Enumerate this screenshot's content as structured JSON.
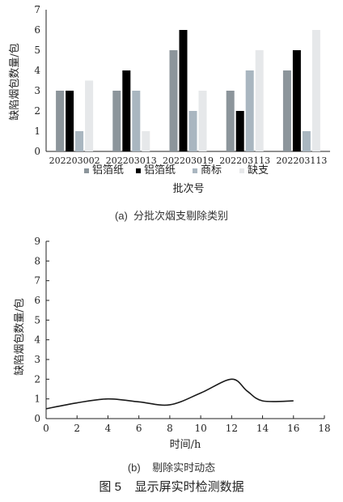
{
  "chart_data": [
    {
      "type": "bar",
      "caption": "(a)  分批次烟支剔除类别",
      "categories": [
        "202203002",
        "202203013",
        "202203019",
        "202203113",
        "202203113"
      ],
      "series": [
        {
          "name": "铝箔纸",
          "color": "#8c959b",
          "values": [
            3,
            3,
            5,
            3,
            4
          ]
        },
        {
          "name": "铝箔纸",
          "color": "#000000",
          "values": [
            3,
            4,
            6,
            2,
            5
          ]
        },
        {
          "name": "商标",
          "color": "#a9b6c0",
          "values": [
            1,
            3,
            2,
            4,
            1
          ]
        },
        {
          "name": "缺支",
          "color": "#e6e8ea",
          "values": [
            3.5,
            1,
            3,
            5,
            6
          ]
        }
      ],
      "ylabel": "缺陷烟包数量/包",
      "xlabel": "批次号",
      "ylim": [
        0,
        7
      ],
      "yticks": [
        "0",
        "1",
        "2",
        "3",
        "4",
        "5",
        "6",
        "7"
      ],
      "legend_position": "bottom",
      "grid": false
    },
    {
      "type": "line",
      "caption": "(b)    剔除实时动态",
      "x": [
        0,
        2,
        4,
        6,
        8,
        10,
        12,
        13,
        14,
        16
      ],
      "y": [
        0.5,
        0.8,
        1.0,
        0.85,
        0.7,
        1.3,
        2.0,
        1.4,
        0.9,
        0.9
      ],
      "xlabel": "时间/h",
      "ylabel": "缺陷烟包数量/包",
      "xlim": [
        0,
        18
      ],
      "ylim": [
        0,
        9
      ],
      "xticks": [
        "0",
        "2",
        "4",
        "6",
        "8",
        "10",
        "12",
        "14",
        "16",
        "18"
      ],
      "yticks": [
        "0",
        "1",
        "2",
        "3",
        "4",
        "5",
        "6",
        "7",
        "8",
        "9"
      ],
      "line_color": "#1a1a1a",
      "grid": false
    }
  ],
  "figure_caption": "图 5    显示屏实时检测数据"
}
